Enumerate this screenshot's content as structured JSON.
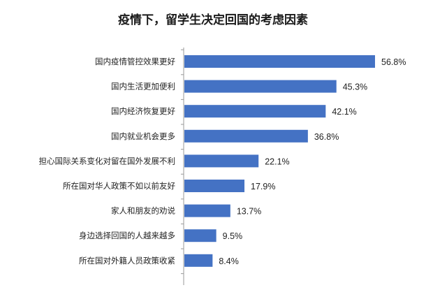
{
  "chart_data": {
    "type": "bar",
    "orientation": "horizontal",
    "title": "疫情下，留学生决定回国的考虑因素",
    "categories": [
      "国内疫情管控效果更好",
      "国内生活更加便利",
      "国内经济恢复更好",
      "国内就业机会更多",
      "担心国际关系变化对留在国外发展不利",
      "所在国对华人政策不如以前友好",
      "家人和朋友的劝说",
      "身边选择回国的人越来越多",
      "所在国对外籍人员政策收紧"
    ],
    "values": [
      56.8,
      45.3,
      42.1,
      36.8,
      22.1,
      17.9,
      13.7,
      9.5,
      8.4
    ],
    "value_labels": [
      "56.8%",
      "45.3%",
      "42.1%",
      "36.8%",
      "22.1%",
      "17.9%",
      "13.7%",
      "9.5%",
      "8.4%"
    ],
    "unit": "%",
    "xlim": [
      0,
      60
    ],
    "bar_color": "#4472C4",
    "axis_color": "#9a9a9a",
    "grid": false,
    "legend": "none"
  }
}
